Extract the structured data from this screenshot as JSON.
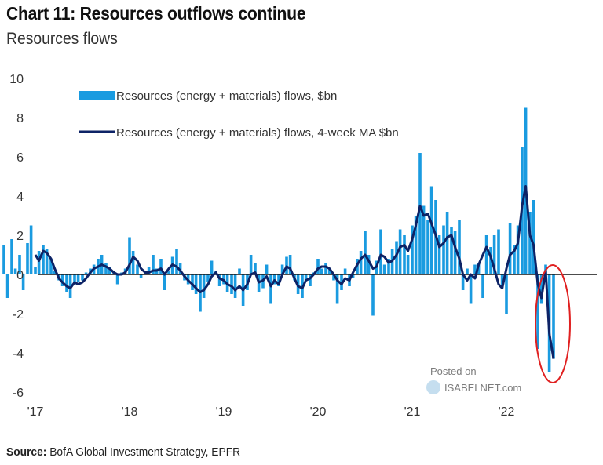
{
  "chart_data": {
    "type": "bar",
    "title": "Chart 11: Resources outflows continue",
    "subtitle": "Resources flows",
    "source_label": "Source:",
    "source_text": "BofA Global Investment Strategy, EPFR",
    "watermark": {
      "line1": "Posted on",
      "line2": "ISABELNET.com"
    },
    "ylim": [
      -6,
      10
    ],
    "yticks": [
      10,
      8,
      6,
      4,
      2,
      0,
      -2,
      -4,
      -6
    ],
    "xticks": [
      {
        "label": "'17",
        "year": 2017
      },
      {
        "label": "'18",
        "year": 2018
      },
      {
        "label": "'19",
        "year": 2019
      },
      {
        "label": "'20",
        "year": 2020
      },
      {
        "label": "'21",
        "year": 2021
      },
      {
        "label": "'22",
        "year": 2022
      }
    ],
    "grid": false,
    "legend_placement": "top-left",
    "annotation": {
      "type": "ellipse",
      "color": "#e02020",
      "highlights": "2022 outflows"
    },
    "x": [
      "2016-09-01",
      "2016-09-15",
      "2016-10-01",
      "2016-10-15",
      "2016-11-01",
      "2016-11-15",
      "2016-12-01",
      "2016-12-15",
      "2017-01-01",
      "2017-01-15",
      "2017-02-01",
      "2017-02-15",
      "2017-03-01",
      "2017-03-15",
      "2017-04-01",
      "2017-04-15",
      "2017-05-01",
      "2017-05-15",
      "2017-06-01",
      "2017-06-15",
      "2017-07-01",
      "2017-07-15",
      "2017-08-01",
      "2017-08-15",
      "2017-09-01",
      "2017-09-15",
      "2017-10-01",
      "2017-10-15",
      "2017-11-01",
      "2017-11-15",
      "2017-12-01",
      "2017-12-15",
      "2018-01-01",
      "2018-01-15",
      "2018-02-01",
      "2018-02-15",
      "2018-03-01",
      "2018-03-15",
      "2018-04-01",
      "2018-04-15",
      "2018-05-01",
      "2018-05-15",
      "2018-06-01",
      "2018-06-15",
      "2018-07-01",
      "2018-07-15",
      "2018-08-01",
      "2018-08-15",
      "2018-09-01",
      "2018-09-15",
      "2018-10-01",
      "2018-10-15",
      "2018-11-01",
      "2018-11-15",
      "2018-12-01",
      "2018-12-15",
      "2019-01-01",
      "2019-01-15",
      "2019-02-01",
      "2019-02-15",
      "2019-03-01",
      "2019-03-15",
      "2019-04-01",
      "2019-04-15",
      "2019-05-01",
      "2019-05-15",
      "2019-06-01",
      "2019-06-15",
      "2019-07-01",
      "2019-07-15",
      "2019-08-01",
      "2019-08-15",
      "2019-09-01",
      "2019-09-15",
      "2019-10-01",
      "2019-10-15",
      "2019-11-01",
      "2019-11-15",
      "2019-12-01",
      "2019-12-15",
      "2020-01-01",
      "2020-01-15",
      "2020-02-01",
      "2020-02-15",
      "2020-03-01",
      "2020-03-15",
      "2020-04-01",
      "2020-04-15",
      "2020-05-01",
      "2020-05-15",
      "2020-06-01",
      "2020-06-15",
      "2020-07-01",
      "2020-07-15",
      "2020-08-01",
      "2020-08-15",
      "2020-09-01",
      "2020-09-15",
      "2020-10-01",
      "2020-10-15",
      "2020-11-01",
      "2020-11-15",
      "2020-12-01",
      "2020-12-15",
      "2021-01-01",
      "2021-01-15",
      "2021-02-01",
      "2021-02-15",
      "2021-03-01",
      "2021-03-15",
      "2021-04-01",
      "2021-04-15",
      "2021-05-01",
      "2021-05-15",
      "2021-06-01",
      "2021-06-15",
      "2021-07-01",
      "2021-07-15",
      "2021-08-01",
      "2021-08-15",
      "2021-09-01",
      "2021-09-15",
      "2021-10-01",
      "2021-10-15",
      "2021-11-01",
      "2021-11-15",
      "2021-12-01",
      "2021-12-15",
      "2022-01-01",
      "2022-01-15",
      "2022-02-01",
      "2022-02-15",
      "2022-03-01",
      "2022-03-15",
      "2022-04-01",
      "2022-04-15",
      "2022-05-01",
      "2022-05-15",
      "2022-06-01",
      "2022-06-15",
      "2022-07-01"
    ],
    "series": [
      {
        "name": "Resources (energy + materials) flows, $bn",
        "type": "bar",
        "color": "#1a9be0",
        "values": [
          1.5,
          -1.2,
          1.8,
          0.3,
          1.0,
          -0.8,
          1.6,
          2.5,
          0.4,
          1.2,
          1.5,
          1.3,
          0.8,
          0.2,
          -0.3,
          -0.6,
          -0.9,
          -1.2,
          -0.5,
          -0.4,
          -0.3,
          0.1,
          0.3,
          0.5,
          0.8,
          1.0,
          0.6,
          0.4,
          0.2,
          -0.5,
          0.1,
          0.3,
          1.9,
          1.2,
          0.5,
          -0.2,
          0.2,
          0.4,
          1.0,
          0.3,
          0.8,
          -0.8,
          0.2,
          0.9,
          1.3,
          0.6,
          -0.3,
          -0.5,
          -0.8,
          -1.0,
          -1.9,
          -1.2,
          -0.4,
          0.7,
          0.2,
          -0.6,
          -0.5,
          -0.9,
          -1.0,
          -1.2,
          0.3,
          -1.6,
          -0.8,
          1.0,
          0.6,
          -0.9,
          -0.7,
          0.5,
          -1.5,
          -0.5,
          -0.6,
          0.5,
          0.9,
          1.0,
          -0.3,
          -1.0,
          -1.2,
          -0.3,
          -0.6,
          0.1,
          0.8,
          0.3,
          0.6,
          0.3,
          -0.3,
          -1.5,
          -0.8,
          0.3,
          -0.6,
          -0.2,
          0.8,
          1.2,
          2.2,
          1.0,
          -2.1,
          0.7,
          2.3,
          0.5,
          0.8,
          1.3,
          1.7,
          2.3,
          2.0,
          1.0,
          2.5,
          3.0,
          6.2,
          3.5,
          2.8,
          4.5,
          3.8,
          2.0,
          2.5,
          3.2,
          2.4,
          2.2,
          2.8,
          -0.8,
          0.3,
          -1.5,
          0.5,
          0.6,
          -1.2,
          2.0,
          1.4,
          2.0,
          2.3,
          -0.7,
          -2.0,
          2.6,
          1.5,
          2.5,
          6.5,
          8.5,
          3.2,
          3.8,
          -3.8,
          -1.5,
          0.5,
          -5.0,
          -4.3
        ]
      },
      {
        "name": "Resources (energy + materials) flows, 4-week MA $bn",
        "type": "line",
        "color": "#0d2366",
        "values": [
          null,
          null,
          null,
          null,
          null,
          null,
          null,
          null,
          1.0,
          0.7,
          1.2,
          1.1,
          0.8,
          0.3,
          -0.2,
          -0.4,
          -0.6,
          -0.7,
          -0.4,
          -0.5,
          -0.4,
          -0.2,
          0.1,
          0.3,
          0.4,
          0.5,
          0.4,
          0.3,
          0.1,
          0.0,
          0.0,
          0.1,
          0.5,
          0.9,
          0.7,
          0.3,
          0.1,
          0.1,
          0.2,
          0.2,
          0.3,
          0.0,
          0.3,
          0.5,
          0.4,
          0.2,
          -0.1,
          -0.3,
          -0.5,
          -0.7,
          -0.9,
          -0.8,
          -0.5,
          -0.1,
          0.1,
          -0.2,
          -0.3,
          -0.5,
          -0.6,
          -0.8,
          -0.6,
          -0.8,
          -0.5,
          0.0,
          0.1,
          -0.4,
          -0.3,
          -0.1,
          -0.6,
          -0.3,
          -0.5,
          0.0,
          0.4,
          0.3,
          -0.2,
          -0.6,
          -0.7,
          -0.3,
          -0.2,
          0.0,
          0.3,
          0.4,
          0.4,
          0.3,
          0.0,
          -0.3,
          -0.5,
          -0.2,
          -0.3,
          0.1,
          0.5,
          0.8,
          1.0,
          0.7,
          0.3,
          0.4,
          1.0,
          0.9,
          0.6,
          0.7,
          1.0,
          1.4,
          1.5,
          1.2,
          1.8,
          2.5,
          3.5,
          3.0,
          3.1,
          2.6,
          2.0,
          1.4,
          1.6,
          1.9,
          2.0,
          1.4,
          0.8,
          0.0,
          -0.3,
          0.0,
          -0.2,
          0.5,
          1.0,
          1.4,
          0.9,
          0.3,
          -0.5,
          -0.7,
          0.3,
          1.0,
          1.2,
          1.6,
          3.5,
          4.5,
          2.0,
          1.5,
          -0.5,
          -1.2,
          0.2,
          -3.0,
          -4.3
        ]
      }
    ]
  }
}
